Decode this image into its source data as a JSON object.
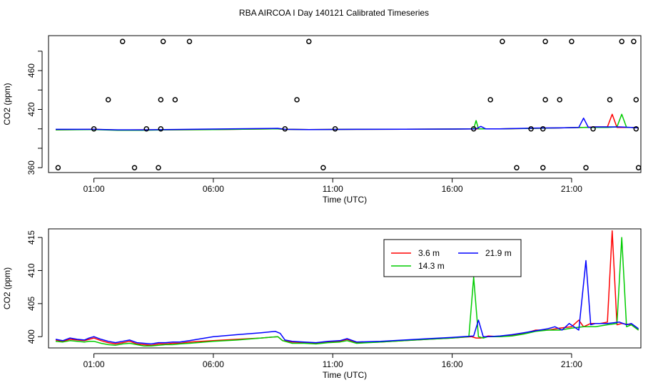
{
  "figure_title": "RBA AIRCOA I  Day 140121  Calibrated Timeseries",
  "chart_data": [
    {
      "type": "line",
      "title": "",
      "xlabel": "Time (UTC)",
      "ylabel": "CO2 (ppm)",
      "xlim": [
        -0.9,
        23.9
      ],
      "ylim": [
        355,
        496
      ],
      "x_ticks": [
        1,
        6,
        11,
        16,
        21
      ],
      "x_tick_labels": [
        "01:00",
        "06:00",
        "11:00",
        "16:00",
        "21:00"
      ],
      "y_ticks": [
        360,
        380,
        400,
        420,
        440,
        460,
        480
      ],
      "y_tick_labels": [
        "360",
        "",
        "",
        "420",
        "",
        "460",
        ""
      ],
      "grid": false,
      "legend": null,
      "series": [
        {
          "color": "#ff0000",
          "style": "line",
          "x": [
            -0.6,
            1.0,
            2.0,
            3.0,
            4.0,
            6.0,
            8.7,
            9.0,
            10.0,
            12.0,
            14.0,
            16.0,
            17.0,
            18.0,
            19.5,
            20.5,
            21.5,
            22.0,
            22.2,
            22.5,
            22.7,
            22.9,
            23.2,
            23.5,
            23.8
          ],
          "y": [
            399,
            399.5,
            398.8,
            399,
            399,
            399.3,
            400,
            399.5,
            399.2,
            399.5,
            399.6,
            399.8,
            400,
            400,
            400.5,
            401,
            401.5,
            402,
            402,
            402,
            415,
            401.5,
            401.5,
            401.5,
            401
          ]
        },
        {
          "color": "#00cc00",
          "style": "line",
          "x": [
            -0.6,
            1.0,
            2.0,
            3.0,
            4.0,
            6.0,
            8.7,
            9.0,
            10.0,
            12.0,
            14.0,
            16.0,
            16.9,
            17.0,
            17.1,
            17.3,
            18.0,
            19.5,
            20.5,
            21.5,
            22.0,
            22.5,
            22.9,
            23.1,
            23.3,
            23.5,
            23.8
          ],
          "y": [
            399,
            399.3,
            398.5,
            398.5,
            399,
            399.3,
            400,
            399.5,
            399.2,
            399.5,
            399.6,
            399.8,
            400,
            408.5,
            400,
            400,
            400,
            400.5,
            401,
            401.5,
            401.5,
            401.5,
            402,
            415,
            401.5,
            401.5,
            401
          ]
        },
        {
          "color": "#0000ff",
          "style": "line",
          "x": [
            -0.6,
            1.0,
            2.0,
            3.0,
            4.0,
            6.0,
            8.7,
            9.0,
            10.0,
            12.0,
            14.0,
            16.0,
            17.0,
            17.2,
            17.4,
            18.0,
            19.5,
            20.5,
            21.3,
            21.5,
            21.7,
            22.0,
            22.5,
            23.0,
            23.5,
            23.8
          ],
          "y": [
            399.5,
            399.5,
            399,
            399,
            399.3,
            399.8,
            400.5,
            399.5,
            399.2,
            399.5,
            399.6,
            399.8,
            400,
            402.5,
            400,
            400,
            400.8,
            401,
            401.5,
            411,
            401.5,
            402,
            402,
            402,
            401.5,
            401
          ]
        },
        {
          "color": "#000000",
          "style": "points",
          "x": [
            -0.5,
            1.0,
            1.6,
            2.2,
            2.7,
            3.2,
            3.7,
            3.8,
            3.8,
            3.9,
            4.4,
            5.0,
            9.0,
            9.5,
            10.0,
            10.6,
            11.1,
            16.9,
            17.6,
            18.1,
            18.7,
            19.3,
            19.8,
            19.8,
            19.9,
            19.9,
            20.5,
            21.0,
            21.6,
            21.9,
            22.6,
            23.1,
            23.6,
            23.7,
            23.7,
            23.8
          ],
          "y": [
            360,
            400,
            430,
            490,
            360,
            400,
            360,
            400,
            430,
            490,
            430,
            490,
            400,
            430,
            490,
            360,
            400,
            400,
            430,
            490,
            360,
            400,
            360,
            400,
            430,
            490,
            430,
            490,
            360,
            400,
            430,
            490,
            490,
            430,
            400,
            360
          ]
        }
      ]
    },
    {
      "type": "line",
      "title": "",
      "xlabel": "Time (UTC)",
      "ylabel": "CO2 (ppm)",
      "xlim": [
        -0.9,
        23.9
      ],
      "ylim": [
        398.3,
        416.3
      ],
      "x_ticks": [
        1,
        6,
        11,
        16,
        21
      ],
      "x_tick_labels": [
        "01:00",
        "06:00",
        "11:00",
        "16:00",
        "21:00"
      ],
      "y_ticks": [
        400,
        405,
        410,
        415
      ],
      "y_tick_labels": [
        "400",
        "405",
        "410",
        "415"
      ],
      "grid": false,
      "legend": "top-right",
      "series": [
        {
          "name": "3.6 m",
          "color": "#ff0000",
          "style": "line",
          "x": [
            -0.6,
            -0.3,
            0.0,
            0.3,
            0.6,
            0.8,
            1.0,
            1.3,
            1.6,
            1.9,
            2.2,
            2.5,
            2.8,
            3.1,
            3.4,
            3.7,
            4.0,
            4.3,
            4.6,
            5.0,
            6.0,
            7.0,
            8.0,
            8.7,
            8.9,
            9.3,
            9.8,
            10.3,
            10.8,
            11.3,
            11.6,
            12.0,
            13.0,
            14.0,
            15.0,
            16.0,
            16.8,
            17.0,
            17.2,
            17.5,
            18.0,
            18.5,
            19.0,
            19.5,
            20.0,
            20.5,
            21.0,
            21.3,
            21.5,
            21.8,
            22.2,
            22.5,
            22.7,
            22.9,
            23.1,
            23.5,
            23.8
          ],
          "y": [
            399.5,
            399.3,
            399.6,
            399.5,
            399.4,
            399.6,
            399.8,
            399.4,
            399.1,
            398.9,
            399.1,
            399.3,
            398.9,
            398.8,
            398.7,
            398.9,
            398.9,
            399.0,
            399.0,
            399.2,
            399.4,
            399.6,
            399.8,
            400.0,
            399.4,
            399.2,
            399.1,
            399.0,
            399.2,
            399.3,
            399.6,
            399.1,
            399.2,
            399.4,
            399.6,
            399.8,
            400.0,
            399.8,
            399.8,
            400.1,
            400.0,
            400.2,
            400.5,
            401.0,
            401.0,
            401.3,
            401.5,
            402.5,
            401.5,
            402.0,
            402.0,
            402.2,
            416.0,
            401.8,
            402.0,
            401.8,
            401.0
          ]
        },
        {
          "name": "14.3 m",
          "color": "#00cc00",
          "style": "line",
          "x": [
            -0.6,
            -0.3,
            0.0,
            0.3,
            0.6,
            0.8,
            1.0,
            1.3,
            1.6,
            1.9,
            2.2,
            2.5,
            2.8,
            3.1,
            3.4,
            3.7,
            4.0,
            4.3,
            4.6,
            5.0,
            6.0,
            7.0,
            8.0,
            8.7,
            8.9,
            9.3,
            9.8,
            10.3,
            10.8,
            11.3,
            11.6,
            12.0,
            13.0,
            14.0,
            15.0,
            16.0,
            16.7,
            16.9,
            17.1,
            17.3,
            17.5,
            18.0,
            18.5,
            19.0,
            19.5,
            20.0,
            20.5,
            21.0,
            21.5,
            22.0,
            22.5,
            22.9,
            23.1,
            23.3,
            23.5,
            23.8
          ],
          "y": [
            399.3,
            399.2,
            399.4,
            399.3,
            399.2,
            399.3,
            399.3,
            399.0,
            398.8,
            398.7,
            398.9,
            399.0,
            398.8,
            398.6,
            398.6,
            398.7,
            398.8,
            398.8,
            398.9,
            399.0,
            399.3,
            399.5,
            399.8,
            400.0,
            399.4,
            399.0,
            399.0,
            398.9,
            399.1,
            399.2,
            399.4,
            399.0,
            399.2,
            399.4,
            399.6,
            399.8,
            400.0,
            409.0,
            400.0,
            399.8,
            400.0,
            400.0,
            400.1,
            400.4,
            400.8,
            401.0,
            401.0,
            401.3,
            401.5,
            401.5,
            401.8,
            402.0,
            415.0,
            401.5,
            401.8,
            401.0
          ]
        },
        {
          "name": "21.9 m",
          "color": "#0000ff",
          "style": "line",
          "x": [
            -0.6,
            -0.3,
            0.0,
            0.3,
            0.6,
            0.8,
            1.0,
            1.3,
            1.6,
            1.9,
            2.2,
            2.5,
            2.8,
            3.1,
            3.4,
            3.7,
            4.0,
            4.3,
            4.6,
            5.0,
            6.0,
            7.0,
            8.0,
            8.6,
            8.8,
            9.0,
            9.3,
            9.8,
            10.3,
            10.8,
            11.3,
            11.6,
            12.0,
            13.0,
            14.0,
            15.0,
            16.0,
            16.9,
            17.1,
            17.3,
            17.5,
            18.0,
            18.5,
            19.0,
            19.5,
            20.0,
            20.3,
            20.6,
            20.9,
            21.3,
            21.6,
            21.8,
            22.0,
            22.5,
            23.0,
            23.3,
            23.5,
            23.8
          ],
          "y": [
            399.6,
            399.4,
            399.8,
            399.6,
            399.5,
            399.8,
            400.0,
            399.6,
            399.3,
            399.1,
            399.3,
            399.5,
            399.1,
            399.0,
            398.9,
            399.1,
            399.1,
            399.2,
            399.2,
            399.4,
            400.0,
            400.3,
            400.6,
            400.8,
            400.5,
            399.5,
            399.3,
            399.2,
            399.1,
            399.3,
            399.4,
            399.7,
            399.2,
            399.3,
            399.5,
            399.7,
            399.9,
            400.1,
            402.5,
            400.0,
            400.0,
            400.1,
            400.3,
            400.6,
            400.9,
            401.2,
            401.5,
            401.0,
            402.0,
            401.0,
            411.5,
            401.8,
            402.0,
            402.0,
            402.2,
            401.8,
            402.0,
            401.2
          ]
        }
      ]
    }
  ]
}
